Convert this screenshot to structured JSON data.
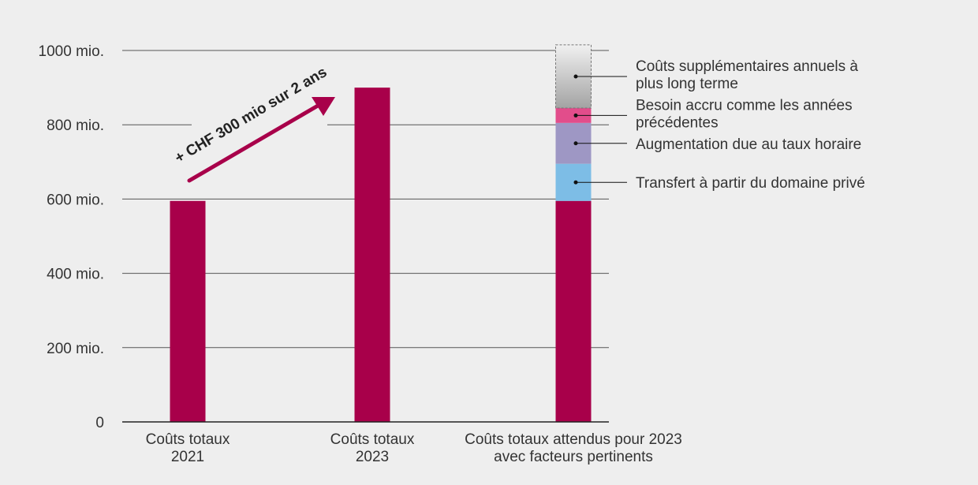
{
  "chart_data": {
    "type": "bar",
    "title": "",
    "xlabel": "",
    "ylabel": "",
    "ylim": [
      0,
      1000
    ],
    "yticks": [
      0,
      200,
      400,
      600,
      800,
      1000
    ],
    "ytick_labels": [
      "0",
      "200 mio.",
      "400 mio.",
      "600 mio.",
      "800 mio.",
      "1000 mio."
    ],
    "grid": true,
    "legend_placement": "right",
    "categories": [
      [
        "Coûts totaux",
        "2021"
      ],
      [
        "Coûts totaux",
        "2023"
      ],
      [
        "Coûts totaux attendus pour 2023",
        "avec facteurs pertinents"
      ]
    ],
    "bars": [
      {
        "base_value": 595,
        "segments": []
      },
      {
        "base_value": 900,
        "segments": []
      },
      {
        "base_value": 595,
        "segments": [
          {
            "name": [
              "Transfert à partir du domaine privé"
            ],
            "value": 100,
            "color": "#7dbde6"
          },
          {
            "name": [
              "Augmentation due au taux horaire"
            ],
            "value": 110,
            "color": "#9e97c4"
          },
          {
            "name": [
              "Besoin accru comme les années",
              "précédentes"
            ],
            "value": 40,
            "color": "#e24d8b"
          },
          {
            "name": [
              "Coûts supplémentaires annuels à",
              "plus long terme"
            ],
            "value": 170,
            "color": "gradient-grey"
          }
        ]
      }
    ],
    "base_color": "#a8004a",
    "annotation": {
      "text": "+ CHF 300 mio sur 2 ans",
      "color": "#a8004a"
    }
  }
}
